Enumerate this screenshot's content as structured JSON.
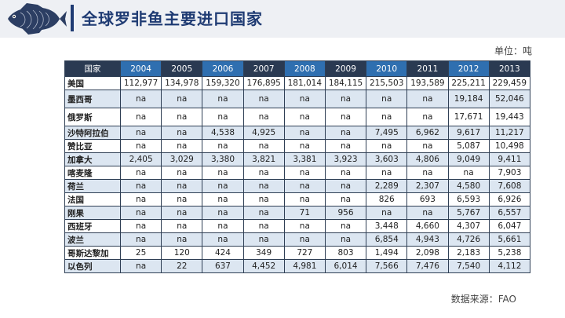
{
  "header": {
    "title": "全球罗非鱼主要进口国家"
  },
  "unit": "单位：吨",
  "source": "数据来源：FAO",
  "table": {
    "country_header": "国家",
    "years": [
      "2004",
      "2005",
      "2006",
      "2007",
      "2008",
      "2009",
      "2010",
      "2011",
      "2012",
      "2013"
    ],
    "rows": [
      {
        "country": "美国",
        "values": [
          "112,977",
          "134,978",
          "159,320",
          "176,895",
          "181,014",
          "184,115",
          "215,503",
          "193,589",
          "225,211",
          "229,459"
        ]
      },
      {
        "country": "墨西哥",
        "values": [
          "na",
          "na",
          "na",
          "na",
          "na",
          "na",
          "na",
          "na",
          "19,184",
          "52,046"
        ]
      },
      {
        "country": "俄罗斯",
        "values": [
          "na",
          "na",
          "na",
          "na",
          "na",
          "na",
          "na",
          "na",
          "17,671",
          "19,443"
        ]
      },
      {
        "country": "沙特阿拉伯",
        "values": [
          "na",
          "na",
          "4,538",
          "4,925",
          "na",
          "na",
          "7,495",
          "6,962",
          "9,617",
          "11,217"
        ]
      },
      {
        "country": "赞比亚",
        "values": [
          "na",
          "na",
          "na",
          "na",
          "na",
          "na",
          "na",
          "na",
          "5,087",
          "10,498"
        ]
      },
      {
        "country": "加拿大",
        "values": [
          "2,405",
          "3,029",
          "3,380",
          "3,821",
          "3,381",
          "3,923",
          "3,603",
          "4,806",
          "9,049",
          "9,411"
        ]
      },
      {
        "country": "喀麦隆",
        "values": [
          "na",
          "na",
          "na",
          "na",
          "na",
          "na",
          "na",
          "na",
          "na",
          "7,903"
        ]
      },
      {
        "country": "荷兰",
        "values": [
          "na",
          "na",
          "na",
          "na",
          "na",
          "na",
          "2,289",
          "2,307",
          "4,580",
          "7,608"
        ]
      },
      {
        "country": "法国",
        "values": [
          "na",
          "na",
          "na",
          "na",
          "na",
          "na",
          "826",
          "693",
          "6,593",
          "6,926"
        ]
      },
      {
        "country": "刚果",
        "values": [
          "na",
          "na",
          "na",
          "na",
          "71",
          "956",
          "na",
          "na",
          "5,767",
          "6,557"
        ]
      },
      {
        "country": "西班牙",
        "values": [
          "na",
          "na",
          "na",
          "na",
          "na",
          "na",
          "3,448",
          "4,660",
          "4,307",
          "6,047"
        ]
      },
      {
        "country": "波兰",
        "values": [
          "na",
          "na",
          "na",
          "na",
          "na",
          "na",
          "6,854",
          "4,943",
          "4,726",
          "5,661"
        ]
      },
      {
        "country": "哥斯达黎加",
        "values": [
          "25",
          "120",
          "424",
          "349",
          "727",
          "803",
          "1,494",
          "2,098",
          "2,183",
          "5,238"
        ]
      },
      {
        "country": "以色列",
        "values": [
          "na",
          "22",
          "637",
          "4,452",
          "4,981",
          "6,014",
          "7,566",
          "7,476",
          "7,540",
          "4,112"
        ]
      }
    ]
  },
  "colors": {
    "navy": "#1f3b73",
    "header_dark": "#2a3a52",
    "header_blue": "#2f6fb0",
    "zebra": "#dce6f1"
  }
}
